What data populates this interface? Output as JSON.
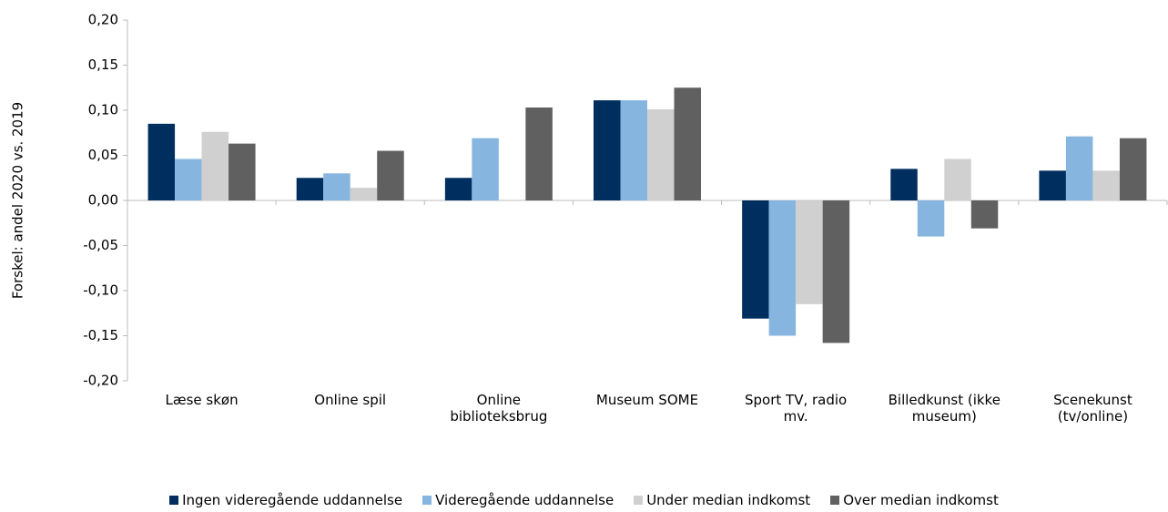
{
  "chart_data": {
    "type": "bar",
    "y_axis_label": "Forskel: andel 2020 vs. 2019",
    "categories": [
      "Læse skøn",
      "Online spil",
      "Online biblioteksbrug",
      "Museum SOME",
      "Sport TV, radio mv.",
      "Billedkunst (ikke museum)",
      "Scenekunst (tv/online)"
    ],
    "series": [
      {
        "name": "Ingen videregående uddannelse",
        "color": "#002f5f",
        "values": [
          0.085,
          0.025,
          0.025,
          0.111,
          -0.131,
          0.035,
          0.033
        ]
      },
      {
        "name": "Videregående uddannelse",
        "color": "#86b6e0",
        "values": [
          0.046,
          0.03,
          0.069,
          0.111,
          -0.15,
          -0.04,
          0.071
        ]
      },
      {
        "name": "Under median indkomst",
        "color": "#d0d0d0",
        "values": [
          0.076,
          0.014,
          0,
          0.101,
          -0.115,
          0.046,
          0.033
        ]
      },
      {
        "name": "Over median indkomst",
        "color": "#606060",
        "values": [
          0.063,
          0.055,
          0.103,
          0.125,
          -0.158,
          -0.031,
          0.069
        ]
      }
    ],
    "ylim": [
      -0.2,
      0.2
    ],
    "yticks": [
      {
        "value": -0.2,
        "label": "-0,20"
      },
      {
        "value": -0.15,
        "label": "-0,15"
      },
      {
        "value": -0.1,
        "label": "-0,10"
      },
      {
        "value": -0.05,
        "label": "-0,05"
      },
      {
        "value": 0,
        "label": "0,00"
      },
      {
        "value": 0.05,
        "label": "0,05"
      },
      {
        "value": 0.1,
        "label": "0,10"
      },
      {
        "value": 0.15,
        "label": "0,15"
      },
      {
        "value": 0.2,
        "label": "0,20"
      }
    ],
    "grid": false,
    "legend": "bottom"
  }
}
